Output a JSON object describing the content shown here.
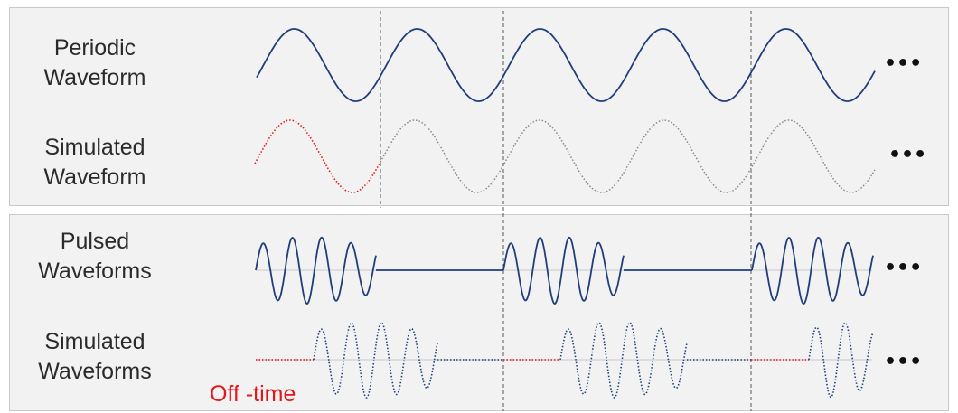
{
  "labels": {
    "periodic": [
      "Periodic",
      "Waveform"
    ],
    "simulated_periodic": [
      "Simulated",
      "Waveform"
    ],
    "pulsed": [
      "Pulsed",
      "Waveforms"
    ],
    "simulated_pulsed": [
      "Simulated",
      "Waveforms"
    ]
  },
  "off_time_label": "Off -time",
  "ellipsis": "•••",
  "colors": {
    "waveform": "#1f3e7a",
    "simulated_tail": "#888888",
    "simulated_pulse": "#1f3e7a",
    "highlight": "#e3161b",
    "divider": "#555555",
    "panel_background": "#f2f2f3"
  }
}
